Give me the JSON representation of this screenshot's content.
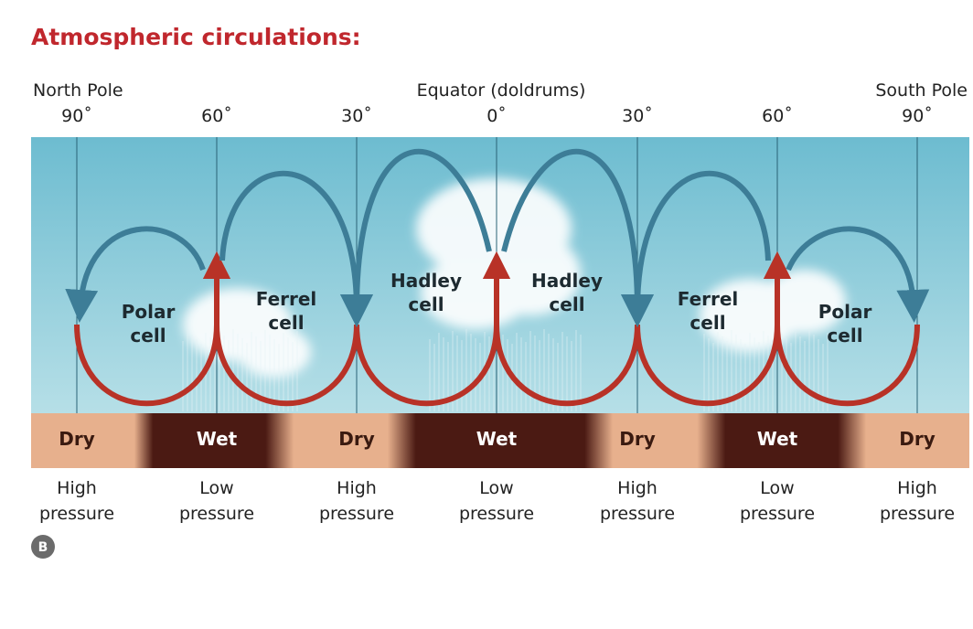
{
  "title": "Atmospheric circulations:",
  "top_labels": {
    "left": "North Pole",
    "center": "Equator (doldrums)",
    "right": "South Pole"
  },
  "latitudes": [
    "90˚",
    "60˚",
    "30˚",
    "0˚",
    "30˚",
    "60˚",
    "90˚"
  ],
  "cells": [
    "Polar cell",
    "Ferrel cell",
    "Hadley cell",
    "Hadley cell",
    "Ferrel cell",
    "Polar cell"
  ],
  "bands": [
    "Dry",
    "Wet",
    "Dry",
    "Wet",
    "Dry",
    "Wet",
    "Dry"
  ],
  "pressure": [
    "High pressure",
    "Low pressure",
    "High pressure",
    "Low pressure",
    "High pressure",
    "Low pressure",
    "High pressure"
  ],
  "badge": "B"
}
